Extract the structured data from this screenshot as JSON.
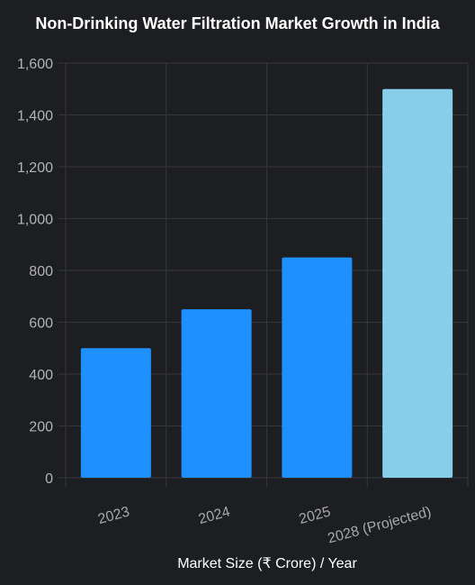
{
  "chart_data": {
    "type": "bar",
    "title": "Non-Drinking Water Filtration Market Growth in India",
    "xlabel": "Market Size (₹ Crore) / Year",
    "ylabel": "",
    "categories": [
      "2023",
      "2024",
      "2025",
      "2028 (Projected)"
    ],
    "values": [
      500,
      650,
      850,
      1500
    ],
    "ylim": [
      0,
      1600
    ],
    "yticks": [
      "0",
      "200",
      "400",
      "600",
      "800",
      "1,000",
      "1,200",
      "1,400",
      "1,600"
    ],
    "grid": true,
    "legend": "none",
    "colors": {
      "actual": "#1e90ff",
      "projected": "#87ceeb",
      "background": "#1d1e22",
      "grid": "#36373c"
    }
  }
}
